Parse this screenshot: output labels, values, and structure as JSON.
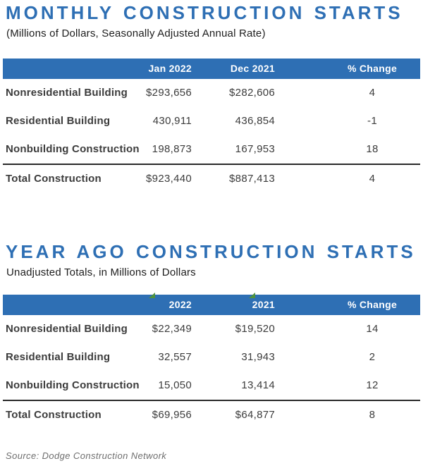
{
  "report": {
    "source_note": "Source: Dodge Construction Network"
  },
  "colors": {
    "accent-blue": "#2E6FB4",
    "header-text": "#FFFFFF",
    "text-dark": "#3C3C3C",
    "rule-dark": "#2A2A2A",
    "source-gray": "#6E6E6E",
    "marker-green": "#4E9140"
  },
  "tables": [
    {
      "title": "MONTHLY CONSTRUCTION STARTS",
      "subtitle": "(Millions of Dollars, Seasonally Adjusted Annual Rate)",
      "columns": [
        "",
        "Jan 2022",
        "Dec 2021",
        "% Change"
      ],
      "rows": [
        {
          "label": "Nonresidential Building",
          "col1": "$293,656",
          "col2": "$282,606",
          "pct_change": "4"
        },
        {
          "label": "Residential Building",
          "col1": "430,911",
          "col2": "436,854",
          "pct_change": "-1"
        },
        {
          "label": "Nonbuilding Construction",
          "col1": "198,873",
          "col2": "167,953",
          "pct_change": "18"
        }
      ],
      "total": {
        "label": "Total Construction",
        "col1": "$923,440",
        "col2": "$887,413",
        "pct_change": "4"
      }
    },
    {
      "title": "YEAR AGO CONSTRUCTION STARTS",
      "subtitle": "Unadjusted Totals, in Millions of Dollars",
      "columns": [
        "",
        "2022",
        "2021",
        "% Change"
      ],
      "rows": [
        {
          "label": "Nonresidential Building",
          "col1": "$22,349",
          "col2": "$19,520",
          "pct_change": "14"
        },
        {
          "label": "Residential Building",
          "col1": "32,557",
          "col2": "31,943",
          "pct_change": "2"
        },
        {
          "label": "Nonbuilding Construction",
          "col1": "15,050",
          "col2": "13,414",
          "pct_change": "12"
        }
      ],
      "total": {
        "label": "Total Construction",
        "col1": "$69,956",
        "col2": "$64,877",
        "pct_change": "8"
      }
    }
  ]
}
